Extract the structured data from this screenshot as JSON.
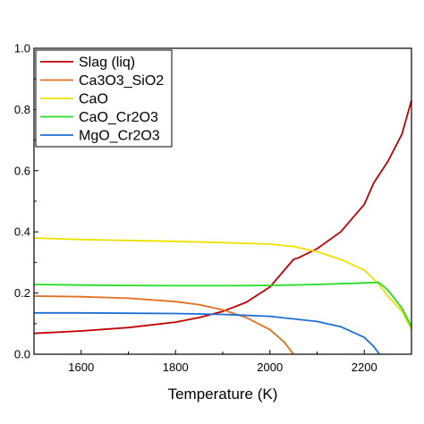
{
  "chart_data": {
    "type": "line",
    "title": "",
    "xlabel": "Temperature (K)",
    "ylabel": "",
    "xlim": [
      1500,
      2300
    ],
    "ylim": [
      0,
      1.0
    ],
    "xticks": [
      1600,
      1800,
      2000,
      2200
    ],
    "yticks": [
      0.0,
      0.2,
      0.4,
      0.6,
      0.8,
      1.0
    ],
    "ytick_labels": [
      "0.0",
      "0.2",
      "0.4",
      "0.6",
      "0.8",
      "1.0"
    ],
    "grid": false,
    "legend_position": "top-left",
    "series": [
      {
        "name": "Slag (liq)",
        "color": "#c00000",
        "x": [
          1500,
          1600,
          1700,
          1800,
          1850,
          1900,
          1950,
          2000,
          2050,
          2060,
          2100,
          2150,
          2200,
          2220,
          2250,
          2280,
          2300
        ],
        "y": [
          0.068,
          0.076,
          0.087,
          0.105,
          0.12,
          0.14,
          0.17,
          0.22,
          0.31,
          0.315,
          0.345,
          0.4,
          0.49,
          0.56,
          0.63,
          0.72,
          0.83
        ]
      },
      {
        "name": "Ca3O3_SiO2",
        "color": "#e07020",
        "x": [
          1500,
          1600,
          1700,
          1800,
          1850,
          1900,
          1950,
          2000,
          2030,
          2050
        ],
        "y": [
          0.19,
          0.188,
          0.183,
          0.172,
          0.162,
          0.145,
          0.12,
          0.08,
          0.04,
          0.0
        ]
      },
      {
        "name": "CaO",
        "color": "#f0e000",
        "x": [
          1500,
          1600,
          1700,
          1800,
          1900,
          2000,
          2050,
          2100,
          2150,
          2200,
          2230,
          2250,
          2280,
          2300
        ],
        "y": [
          0.38,
          0.375,
          0.372,
          0.369,
          0.365,
          0.36,
          0.352,
          0.335,
          0.31,
          0.275,
          0.23,
          0.19,
          0.14,
          0.08
        ]
      },
      {
        "name": "CaO_Cr2O3",
        "color": "#22dd22",
        "x": [
          1500,
          1600,
          1700,
          1800,
          1900,
          2000,
          2100,
          2200,
          2230,
          2250,
          2280,
          2300
        ],
        "y": [
          0.228,
          0.226,
          0.225,
          0.224,
          0.224,
          0.225,
          0.228,
          0.233,
          0.235,
          0.21,
          0.15,
          0.09
        ]
      },
      {
        "name": "MgO_Cr2O3",
        "color": "#1f6fd6",
        "x": [
          1500,
          1600,
          1700,
          1800,
          1900,
          2000,
          2100,
          2150,
          2200,
          2220,
          2232
        ],
        "y": [
          0.135,
          0.135,
          0.134,
          0.133,
          0.13,
          0.124,
          0.107,
          0.09,
          0.055,
          0.025,
          0.0
        ]
      }
    ]
  }
}
